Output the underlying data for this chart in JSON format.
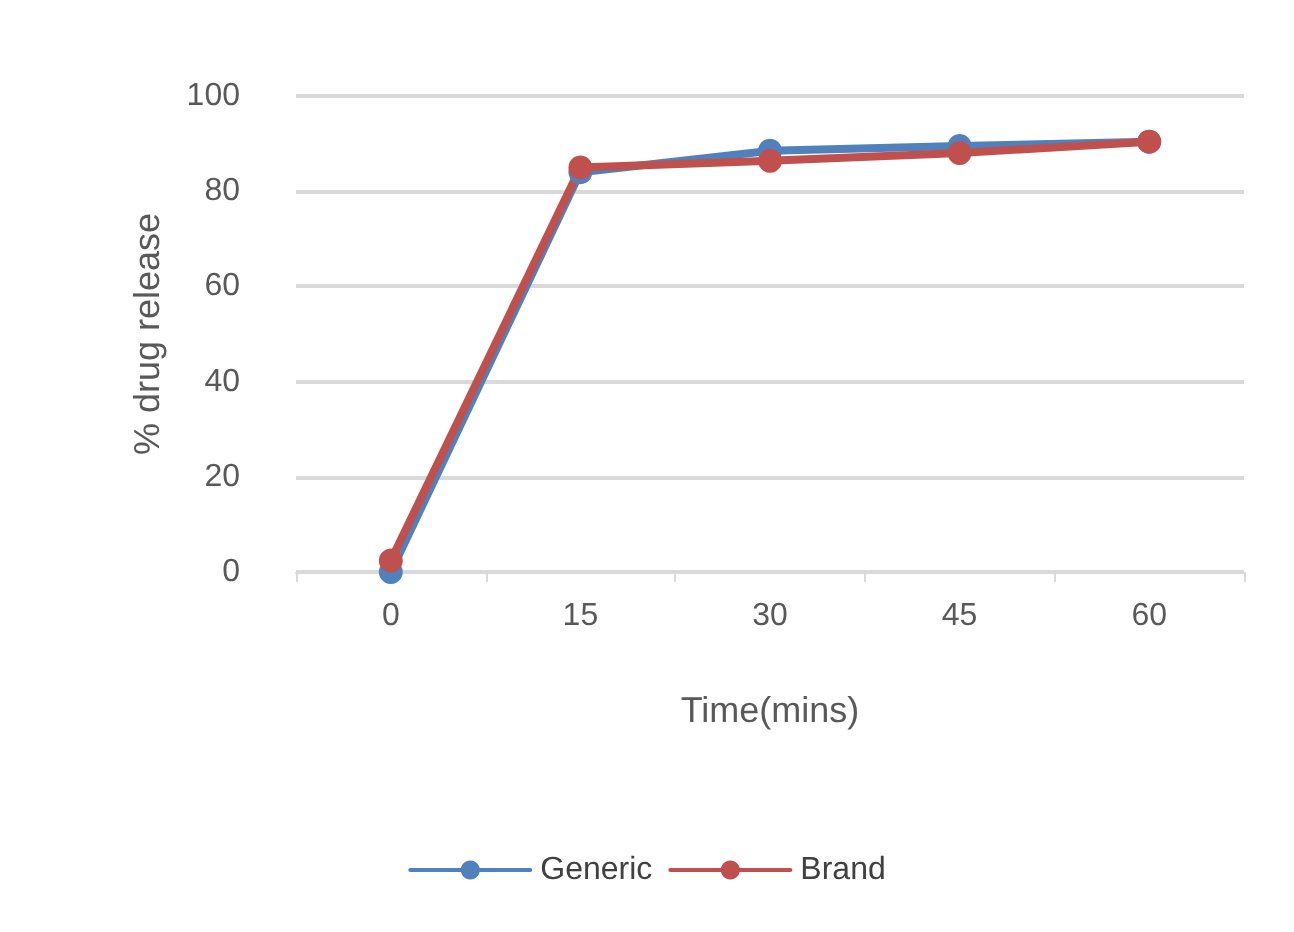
{
  "chart_data": {
    "type": "line",
    "xlabel": "Time(mins)",
    "ylabel": "% drug release",
    "categories": [
      "0",
      "15",
      "30",
      "45",
      "60"
    ],
    "series": [
      {
        "name": "Generic",
        "color": "#4f81bd",
        "values": [
          0,
          84,
          88.5,
          89.5,
          90.4
        ]
      },
      {
        "name": "Brand",
        "color": "#c0504d",
        "values": [
          2.4,
          85,
          86.4,
          88,
          90.4
        ]
      }
    ],
    "ylim": [
      0,
      100
    ],
    "yticks": [
      0,
      20,
      40,
      60,
      80,
      100
    ],
    "grid": "y",
    "legend": "bottom",
    "marker": "circle",
    "line_style": "solid"
  }
}
